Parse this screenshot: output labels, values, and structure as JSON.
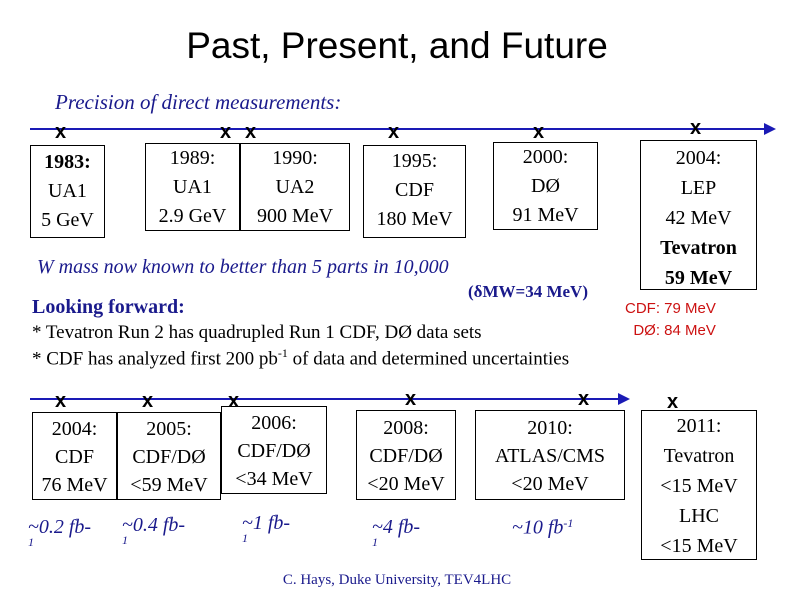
{
  "title": "Past, Present, and Future",
  "subtitle": "Precision of direct measurements:",
  "timeline_mark": "x",
  "colors": {
    "axis": "#1a1ab5",
    "note": "#1a1a8c",
    "cdf_note": "#cc1111"
  },
  "past": [
    {
      "year": "1983:",
      "experiment": "UA1",
      "precision": "5 GeV"
    },
    {
      "year": "1989:",
      "experiment": "UA1",
      "precision": "2.9 GeV"
    },
    {
      "year": "1990:",
      "experiment": "UA2",
      "precision": "900 MeV"
    },
    {
      "year": "1995:",
      "experiment": "CDF",
      "precision": "180 MeV"
    },
    {
      "year": "2000:",
      "experiment": "DØ",
      "precision": "91 MeV"
    }
  ],
  "latest": {
    "year": "2004:",
    "lep": "LEP",
    "lep_precision": "42 MeV",
    "tevatron": "Tevatron",
    "tevatron_precision": "59 MeV"
  },
  "w_mass_note": "W mass now known to better than 5 parts in 10,000",
  "delta_mw": "(δMW=34 MeV)",
  "looking_forward": "Looking forward:",
  "cdf_note": "CDF: 79 MeV",
  "d0_note": "DØ: 84 MeV",
  "bullet1": "* Tevatron Run 2 has quadrupled Run 1 CDF, DØ data sets",
  "bullet2_pre": "* CDF has analyzed first 200 pb",
  "bullet2_sup": "-1",
  "bullet2_post": " of data and determined uncertainties",
  "future": [
    {
      "year": "2004:",
      "experiment": "CDF",
      "precision": "76 MeV",
      "lumi": "~0.2 fb-",
      "lumi_sub": "1"
    },
    {
      "year": "2005:",
      "experiment": "CDF/DØ",
      "precision": "<59 MeV",
      "lumi": "~0.4 fb-",
      "lumi_sub": "1"
    },
    {
      "year": "2006:",
      "experiment": "CDF/DØ",
      "precision": "<34 MeV",
      "lumi": "~1 fb-",
      "lumi_sub": "1"
    },
    {
      "year": "2008:",
      "experiment": "CDF/DØ",
      "precision": "<20 MeV",
      "lumi": "~4 fb-",
      "lumi_sub": "1"
    },
    {
      "year": "2010:",
      "experiment": "ATLAS/CMS",
      "precision": "<20 MeV",
      "lumi": "~10 fb",
      "lumi_sup": "-1"
    }
  ],
  "final": {
    "year": "2011:",
    "tevatron": "Tevatron",
    "tevatron_precision": "<15 MeV",
    "lhc": "LHC",
    "lhc_precision": "<15 MeV"
  },
  "footer": "C. Hays, Duke University, TEV4LHC"
}
